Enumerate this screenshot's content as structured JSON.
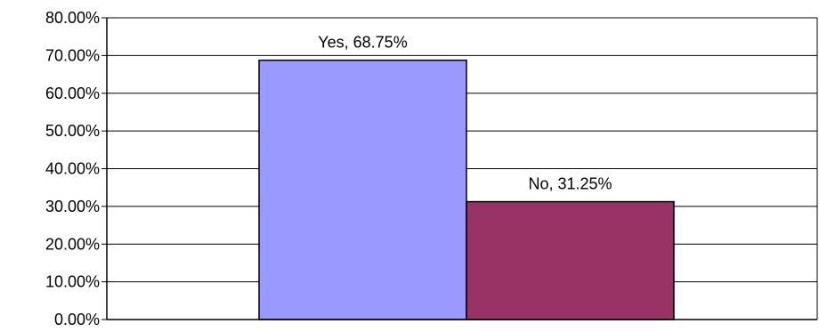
{
  "chart_data": {
    "type": "bar",
    "categories": [
      "Yes",
      "No"
    ],
    "values": [
      68.75,
      31.25
    ],
    "data_labels": [
      "Yes, 68.75%",
      "No, 31.25%"
    ],
    "bar_colors": [
      "#9999FF",
      "#993366"
    ],
    "title": "",
    "xlabel": "",
    "ylabel": "",
    "ylim": [
      0,
      80
    ],
    "yticks": [
      0,
      10,
      20,
      30,
      40,
      50,
      60,
      70,
      80
    ],
    "ytick_labels": [
      "0.00%",
      "10.00%",
      "20.00%",
      "30.00%",
      "40.00%",
      "50.00%",
      "60.00%",
      "70.00%",
      "80.00%"
    ],
    "grid": true,
    "legend": "none"
  }
}
